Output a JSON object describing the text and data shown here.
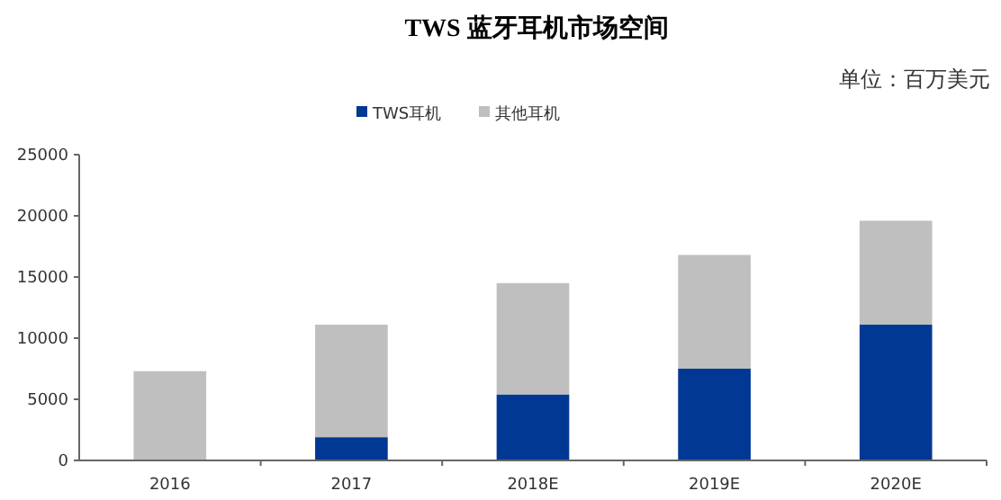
{
  "chart_data": {
    "type": "bar",
    "title": "TWS 蓝牙耳机市场空间",
    "annotations": [
      "单位：百万美元"
    ],
    "categories": [
      "2016",
      "2017",
      "2018E",
      "2019E",
      "2020E"
    ],
    "series": [
      {
        "name": "TWS耳机",
        "color": "#003893",
        "values": [
          0,
          1900,
          5400,
          7500,
          11100
        ]
      },
      {
        "name": "其他耳机",
        "color": "#bfbfbf",
        "values": [
          7300,
          9200,
          9100,
          9300,
          8500
        ]
      }
    ],
    "stacked": true,
    "ylim": [
      0,
      25000
    ],
    "yticks": [
      0,
      5000,
      10000,
      15000,
      20000,
      25000
    ],
    "legend": "top",
    "grid": false
  }
}
